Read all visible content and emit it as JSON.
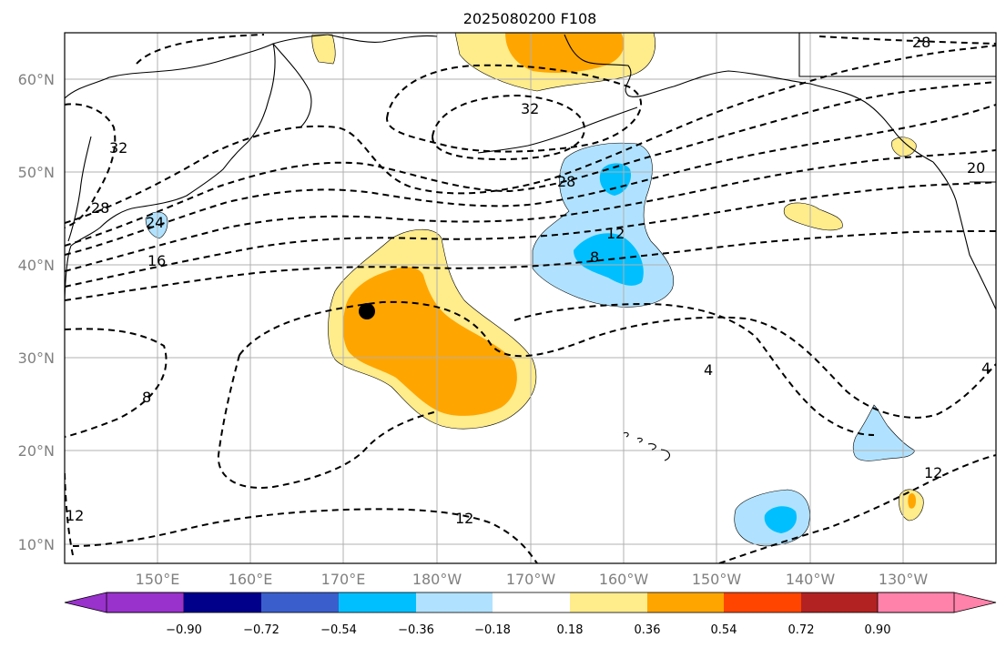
{
  "figure": {
    "title": "2025080200 F108",
    "lat_labels": [
      "60°N",
      "50°N",
      "40°N",
      "30°N",
      "20°N",
      "10°N"
    ],
    "lon_labels": [
      "150°E",
      "160°E",
      "170°E",
      "180°W",
      "170°W",
      "160°W",
      "150°W",
      "140°W",
      "130°W"
    ]
  },
  "colorbar": {
    "tick_labels": [
      "−0.90",
      "−0.72",
      "−0.54",
      "−0.36",
      "−0.18",
      "0.18",
      "0.36",
      "0.54",
      "0.72",
      "0.90"
    ],
    "colors": [
      "#9932cc",
      "#00008b",
      "#3a5fcd",
      "#00bfff",
      "#b0e2ff",
      "#ffffff",
      "#ffec8b",
      "#ffa500",
      "#ff4500",
      "#b22222",
      "#ff82ab"
    ]
  },
  "contour_labels": [
    "28",
    "32",
    "32",
    "28",
    "24",
    "16",
    "28",
    "12",
    "8",
    "20",
    "8",
    "4",
    "4",
    "12",
    "12",
    "12"
  ],
  "marker": {
    "name": "black-dot",
    "color": "#000000"
  }
}
